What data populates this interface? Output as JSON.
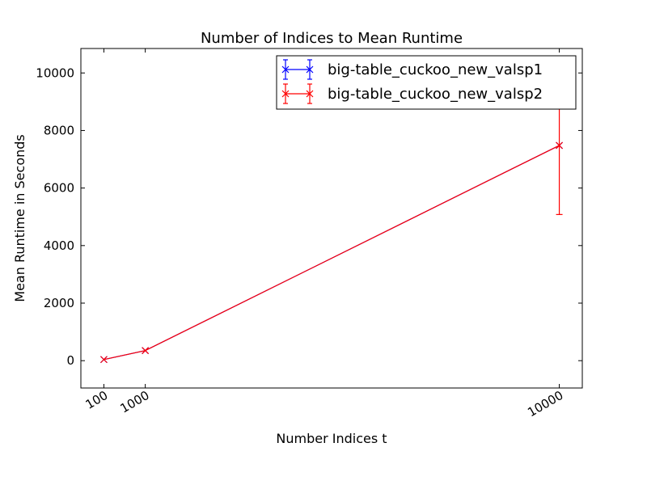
{
  "chart_data": {
    "type": "line",
    "title": "Number of Indices to Mean Runtime",
    "xlabel": "Number Indices t",
    "ylabel": "Mean Runtime in Seconds",
    "x": [
      100,
      1000,
      10000
    ],
    "x_ticks": [
      "100",
      "1000",
      "10000"
    ],
    "xlim": [
      -400,
      10500
    ],
    "ylim": [
      -950,
      10850
    ],
    "y_ticks": [
      0,
      2000,
      4000,
      6000,
      8000,
      10000
    ],
    "grid": false,
    "legend_position": "top-right",
    "series": [
      {
        "name": "big-table_cuckoo_new_valsp1",
        "color": "#0000ff",
        "marker": "x",
        "values": [
          40,
          350,
          7480
        ],
        "err": [
          0,
          0,
          0
        ]
      },
      {
        "name": "big-table_cuckoo_new_valsp2",
        "color": "#ff0000",
        "marker": "x",
        "values": [
          40,
          350,
          7480
        ],
        "err": [
          0,
          0,
          2400
        ]
      }
    ]
  }
}
